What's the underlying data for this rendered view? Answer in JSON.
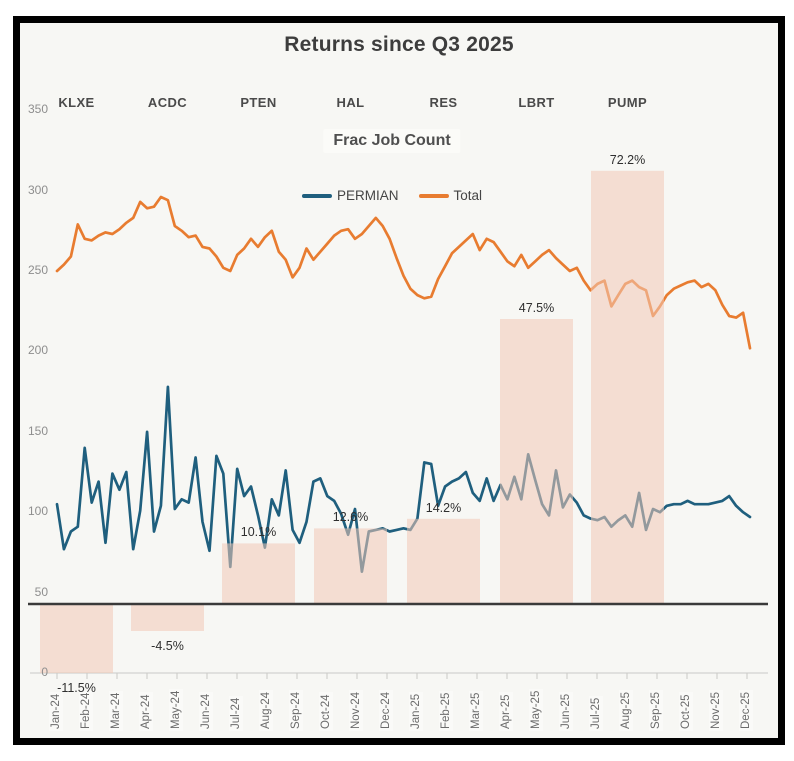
{
  "title": "Returns since Q3 2025",
  "subtitle": "Frac Job Count",
  "tickers": [
    "KLXE",
    "ACDC",
    "PTEN",
    "HAL",
    "RES",
    "LBRT",
    "PUMP"
  ],
  "legend": [
    {
      "label": "PERMIAN",
      "color": "#1f5f7e"
    },
    {
      "label": "Total",
      "color": "#e87c30"
    }
  ],
  "colors": {
    "background": "#f7f7f4",
    "frame": "#000000",
    "permian_line": "#1f5f7e",
    "total_line": "#e87c30",
    "bar_fill": "rgba(243,201,182,0.55)",
    "baseline": "#3a3a3a",
    "axis_line": "#d9d9d6",
    "axis_text": "#8e8e8e"
  },
  "chart_data": [
    {
      "type": "line",
      "title": "Frac Job Count",
      "x_axis_labels": [
        "Jan-24",
        "Feb-24",
        "Mar-24",
        "Apr-24",
        "May-24",
        "Jun-24",
        "Jul-24",
        "Aug-24",
        "Sep-24",
        "Oct-24",
        "Nov-24",
        "Dec-24",
        "Jan-25",
        "Feb-25",
        "Mar-25",
        "Apr-25",
        "May-25",
        "Jun-25",
        "Jul-25",
        "Aug-25",
        "Sep-25",
        "Oct-25",
        "Nov-25",
        "Dec-25"
      ],
      "x_unit": "weekly",
      "ylim": [
        0,
        350
      ],
      "yticks": [
        0,
        50,
        100,
        150,
        200,
        250,
        300,
        350
      ],
      "grid": false,
      "legend_position": "top-center",
      "series": [
        {
          "name": "PERMIAN",
          "color": "#1f5f7e",
          "values": [
            105,
            77,
            88,
            91,
            140,
            106,
            119,
            81,
            124,
            114,
            125,
            77,
            101,
            150,
            88,
            104,
            178,
            102,
            108,
            106,
            134,
            94,
            76,
            135,
            124,
            66,
            127,
            110,
            116,
            98,
            78,
            108,
            98,
            126,
            89,
            81,
            94,
            119,
            121,
            110,
            107,
            99,
            86,
            102,
            63,
            88,
            89,
            90,
            88,
            89,
            90,
            89,
            96,
            131,
            130,
            104,
            116,
            119,
            121,
            125,
            112,
            107,
            121,
            107,
            117,
            108,
            122,
            108,
            136,
            120,
            105,
            98,
            126,
            103,
            111,
            106,
            98,
            96,
            95,
            97,
            91,
            95,
            98,
            91,
            112,
            89,
            102,
            100,
            104,
            105,
            105,
            107,
            105,
            105,
            105,
            106,
            107,
            110,
            104,
            100,
            97
          ]
        },
        {
          "name": "Total",
          "color": "#e87c30",
          "values": [
            250,
            254,
            259,
            279,
            270,
            269,
            272,
            274,
            273,
            276,
            280,
            283,
            293,
            289,
            290,
            296,
            294,
            278,
            275,
            271,
            272,
            265,
            264,
            259,
            252,
            250,
            260,
            264,
            270,
            265,
            271,
            275,
            262,
            257,
            246,
            252,
            264,
            257,
            262,
            267,
            272,
            275,
            276,
            270,
            273,
            278,
            283,
            278,
            270,
            258,
            247,
            239,
            235,
            233,
            234,
            245,
            253,
            261,
            265,
            269,
            273,
            263,
            270,
            268,
            262,
            256,
            253,
            260,
            252,
            256,
            260,
            263,
            258,
            254,
            250,
            252,
            244,
            238,
            242,
            244,
            228,
            235,
            242,
            244,
            240,
            238,
            222,
            228,
            235,
            239,
            241,
            243,
            244,
            240,
            242,
            238,
            229,
            222,
            221,
            224,
            202
          ]
        }
      ]
    },
    {
      "type": "bar",
      "title": "Returns since Q3 2025",
      "categories": [
        "KLXE",
        "ACDC",
        "PTEN",
        "HAL",
        "RES",
        "LBRT",
        "PUMP"
      ],
      "values": [
        -11.5,
        -4.5,
        10.1,
        12.6,
        14.2,
        47.5,
        72.2
      ],
      "labels": [
        "-11.5%",
        "-4.5%",
        "10.1%",
        "12.6%",
        "14.2%",
        "47.5%",
        "72.2%"
      ],
      "unit": "%",
      "bar_color": "rgba(243,201,182,0.55)",
      "baseline_value": 0
    }
  ]
}
